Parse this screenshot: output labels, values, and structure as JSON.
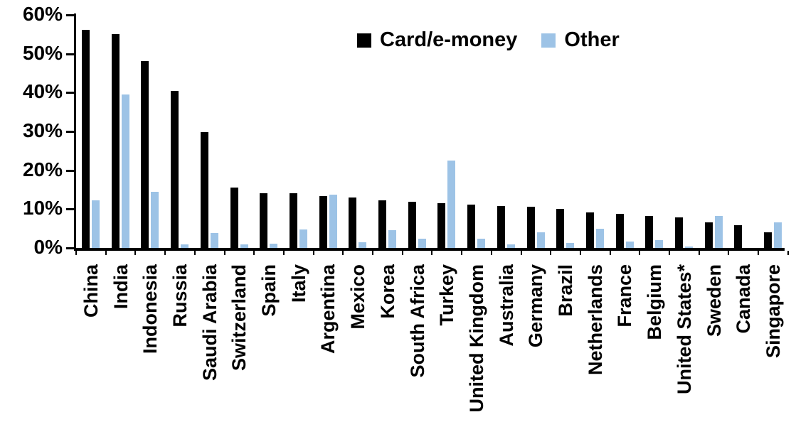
{
  "chart_data": {
    "type": "bar",
    "title": "",
    "xlabel": "",
    "ylabel": "",
    "ylim": [
      0,
      60
    ],
    "ytick_step": 10,
    "ytick_labels": [
      "0%",
      "10%",
      "20%",
      "30%",
      "40%",
      "50%",
      "60%"
    ],
    "grid": "off",
    "legend_position": "top-center",
    "categories": [
      "China",
      "India",
      "Indonesia",
      "Russia",
      "Saudi Arabia",
      "Switzerland",
      "Spain",
      "Italy",
      "Argentina",
      "Mexico",
      "Korea",
      "South Africa",
      "Turkey",
      "United Kingdom",
      "Australia",
      "Germany",
      "Brazil",
      "Netherlands",
      "France",
      "Belgium",
      "United States*",
      "Sweden",
      "Canada",
      "Singapore"
    ],
    "series": [
      {
        "name": "Card/e-money",
        "color": "#000000",
        "values": [
          56.2,
          55.0,
          48.2,
          40.4,
          29.8,
          15.6,
          14.1,
          14.0,
          13.4,
          13.0,
          12.2,
          11.8,
          11.6,
          11.1,
          10.8,
          10.6,
          10.0,
          9.2,
          8.7,
          8.2,
          7.9,
          6.6,
          5.9,
          4.0
        ]
      },
      {
        "name": "Other",
        "color": "#9DC3E6",
        "values": [
          12.3,
          39.6,
          14.5,
          1.0,
          3.9,
          0.9,
          1.1,
          4.7,
          13.8,
          1.4,
          4.6,
          2.4,
          22.5,
          2.3,
          1.0,
          4.0,
          1.3,
          5.0,
          1.7,
          2.1,
          0.4,
          8.2,
          0.0,
          6.6
        ]
      }
    ]
  }
}
